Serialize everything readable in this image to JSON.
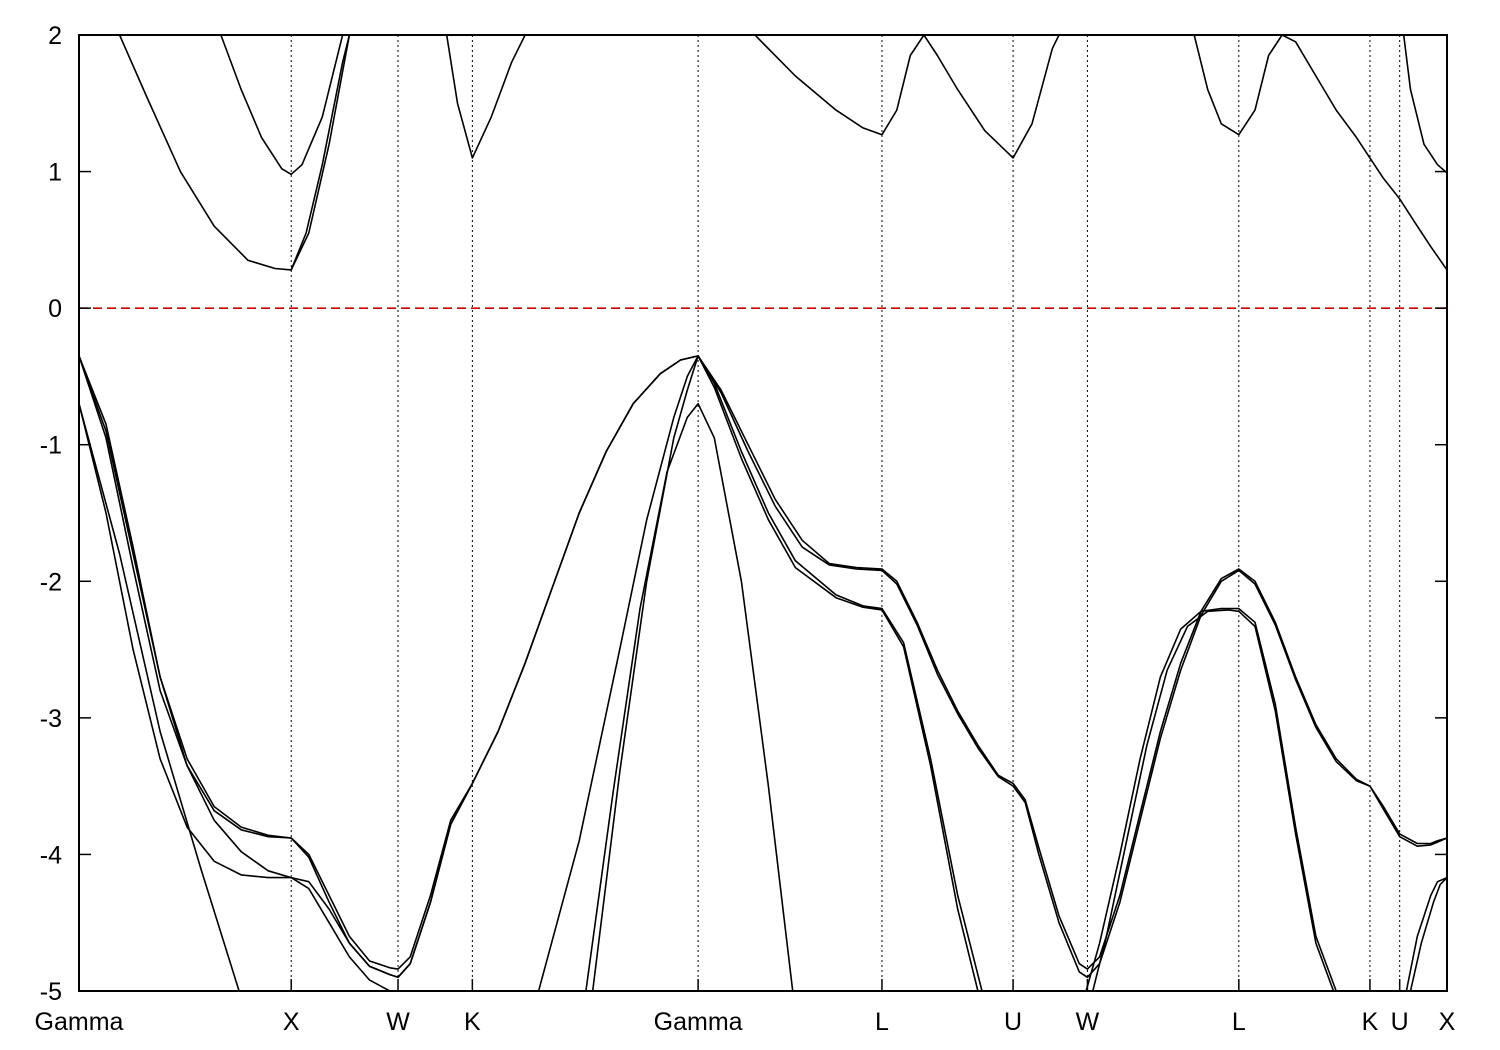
{
  "chart_data": {
    "type": "line",
    "title": "",
    "xlabel": "",
    "ylabel": "",
    "ylim": [
      -5,
      2
    ],
    "xlim": [
      0,
      10.12
    ],
    "yticks": [
      2,
      1,
      0,
      -1,
      -2,
      -3,
      -4,
      -5
    ],
    "ytick_labels": [
      "2",
      "1",
      "0",
      "-1",
      "-2",
      "-3",
      "-4",
      "-5"
    ],
    "k_points": [
      {
        "label": "Gamma",
        "x": 0.0
      },
      {
        "label": "X",
        "x": 1.57
      },
      {
        "label": "W",
        "x": 2.36
      },
      {
        "label": "K",
        "x": 2.91
      },
      {
        "label": "Gamma",
        "x": 4.58
      },
      {
        "label": "L",
        "x": 5.94
      },
      {
        "label": "U",
        "x": 6.91
      },
      {
        "label": "W",
        "x": 7.46
      },
      {
        "label": "L",
        "x": 8.58
      },
      {
        "label": "K",
        "x": 9.55
      },
      {
        "label": "U",
        "x": 9.77
      },
      {
        "label": "X",
        "x": 10.12
      }
    ],
    "fermi_level": 0,
    "fermi_color": "#d00000",
    "line_color": "#000000",
    "series": [
      {
        "x": [
          0,
          0.2,
          0.4,
          0.6,
          0.8,
          1.0,
          1.2,
          1.4,
          1.57,
          1.7,
          1.85,
          2.0,
          2.15,
          2.3,
          2.36,
          2.45,
          2.6,
          2.75,
          2.91,
          3.1,
          3.3,
          3.5,
          3.7,
          3.9,
          4.1,
          4.3,
          4.45,
          4.58,
          4.75,
          4.95,
          5.15,
          5.35,
          5.55,
          5.75,
          5.94,
          6.05,
          6.2,
          6.35,
          6.5,
          6.65,
          6.8,
          6.91,
          7.0,
          7.1,
          7.25,
          7.4,
          7.46,
          7.55,
          7.7,
          7.85,
          8.0,
          8.15,
          8.3,
          8.45,
          8.58,
          8.7,
          8.85,
          9.0,
          9.15,
          9.3,
          9.45,
          9.55,
          9.65,
          9.77,
          9.9,
          10.0,
          10.05,
          10.12
        ],
        "y": [
          -0.35,
          -0.9,
          -1.8,
          -2.7,
          -3.3,
          -3.65,
          -3.8,
          -3.86,
          -3.88,
          -4.0,
          -4.3,
          -4.6,
          -4.78,
          -4.83,
          -4.84,
          -4.75,
          -4.3,
          -3.75,
          -3.48,
          -3.1,
          -2.6,
          -2.05,
          -1.5,
          -1.05,
          -0.7,
          -0.48,
          -0.38,
          -0.35,
          -0.6,
          -1.0,
          -1.4,
          -1.7,
          -1.87,
          -1.9,
          -1.91,
          -2.0,
          -2.3,
          -2.65,
          -2.95,
          -3.2,
          -3.42,
          -3.48,
          -3.6,
          -3.95,
          -4.45,
          -4.8,
          -4.84,
          -4.75,
          -4.3,
          -3.7,
          -3.1,
          -2.6,
          -2.22,
          -1.98,
          -1.91,
          -2.0,
          -2.3,
          -2.7,
          -3.05,
          -3.3,
          -3.45,
          -3.5,
          -3.65,
          -3.85,
          -3.92,
          -3.92,
          -3.9,
          -3.88
        ]
      },
      {
        "x": [
          0,
          0.2,
          0.4,
          0.6,
          0.8,
          1.0,
          1.2,
          1.4,
          1.57,
          1.7,
          1.85,
          2.0,
          2.15,
          2.3,
          2.36,
          2.45,
          2.6,
          2.75,
          2.91,
          3.1,
          3.3,
          3.5,
          3.7,
          3.9,
          4.1,
          4.3,
          4.45,
          4.58,
          4.75,
          4.95,
          5.15,
          5.35,
          5.55,
          5.75,
          5.94,
          6.05,
          6.2,
          6.35,
          6.5,
          6.65,
          6.8,
          6.91,
          7.0,
          7.1,
          7.25,
          7.4,
          7.46,
          7.55,
          7.7,
          7.85,
          8.0,
          8.15,
          8.3,
          8.45,
          8.58,
          8.7,
          8.85,
          9.0,
          9.15,
          9.3,
          9.45,
          9.55,
          9.65,
          9.77,
          9.9,
          10.0,
          10.05,
          10.12
        ],
        "y": [
          -0.35,
          -0.95,
          -1.9,
          -2.8,
          -3.35,
          -3.68,
          -3.82,
          -3.87,
          -3.88,
          -4.02,
          -4.35,
          -4.65,
          -4.82,
          -4.88,
          -4.9,
          -4.8,
          -4.35,
          -3.78,
          -3.48,
          -3.1,
          -2.6,
          -2.05,
          -1.5,
          -1.05,
          -0.7,
          -0.48,
          -0.38,
          -0.35,
          -0.62,
          -1.05,
          -1.45,
          -1.75,
          -1.88,
          -1.91,
          -1.92,
          -2.02,
          -2.32,
          -2.68,
          -2.97,
          -3.22,
          -3.43,
          -3.5,
          -3.62,
          -4.0,
          -4.5,
          -4.86,
          -4.9,
          -4.8,
          -4.35,
          -3.75,
          -3.15,
          -2.65,
          -2.25,
          -2.0,
          -1.92,
          -2.02,
          -2.32,
          -2.72,
          -3.07,
          -3.32,
          -3.46,
          -3.5,
          -3.67,
          -3.87,
          -3.94,
          -3.93,
          -3.91,
          -3.88
        ]
      },
      {
        "x": [
          0,
          0.2,
          0.4,
          0.6,
          0.8,
          1.0,
          1.2,
          1.4,
          1.57,
          1.7,
          1.85,
          2.0,
          2.15,
          2.3,
          2.36,
          2.45,
          2.55,
          2.6
        ],
        "y": [
          -0.7,
          -1.5,
          -2.5,
          -3.3,
          -3.8,
          -4.05,
          -4.15,
          -4.17,
          -4.17,
          -4.25,
          -4.5,
          -4.75,
          -4.92,
          -5.0,
          -5.05,
          -5.1,
          -5.15,
          -5.2
        ]
      },
      {
        "x": [
          0,
          0.2,
          0.4,
          0.6,
          0.8,
          1.0,
          1.2,
          1.4,
          1.57,
          1.7,
          1.85,
          2.0,
          2.15,
          2.3,
          2.36,
          2.45,
          2.6,
          2.75,
          2.91
        ],
        "y": [
          -0.35,
          -0.85,
          -1.75,
          -2.7,
          -3.35,
          -3.75,
          -3.98,
          -4.12,
          -4.17,
          -4.2,
          -4.4,
          -4.65,
          -4.82,
          -4.88,
          -4.9,
          -4.8,
          -4.35,
          -3.78,
          -3.48
        ]
      },
      {
        "x": [
          0,
          0.3,
          0.6,
          0.9,
          1.2
        ],
        "y": [
          -0.7,
          -1.8,
          -3.1,
          -4.1,
          -5.05
        ]
      },
      {
        "x": [
          3.4,
          3.7,
          4.0,
          4.2,
          4.4,
          4.5,
          4.58,
          4.7,
          4.9,
          5.1,
          5.3,
          5.6,
          5.8,
          5.94,
          6.1,
          6.3,
          6.5,
          6.68
        ],
        "y": [
          -5.0,
          -3.9,
          -2.5,
          -1.55,
          -0.8,
          -0.5,
          -0.35,
          -0.55,
          -1.05,
          -1.5,
          -1.85,
          -2.1,
          -2.18,
          -2.2,
          -2.45,
          -3.3,
          -4.3,
          -5.0
        ]
      },
      {
        "x": [
          3.8,
          4.0,
          4.2,
          4.4,
          4.5,
          4.58,
          4.7,
          4.9,
          5.1,
          5.3,
          5.6,
          5.8,
          5.94,
          6.1,
          6.3,
          6.5,
          6.65
        ],
        "y": [
          -5.0,
          -3.4,
          -2.0,
          -0.95,
          -0.6,
          -0.35,
          -0.58,
          -1.1,
          -1.55,
          -1.9,
          -2.12,
          -2.19,
          -2.21,
          -2.48,
          -3.35,
          -4.4,
          -5.0
        ]
      },
      {
        "x": [
          3.75,
          3.95,
          4.15,
          4.35,
          4.5,
          4.58,
          4.7,
          4.9,
          5.1,
          5.28
        ],
        "y": [
          -5.0,
          -3.55,
          -2.2,
          -1.2,
          -0.8,
          -0.7,
          -0.95,
          -2.0,
          -3.5,
          -5.0
        ]
      },
      {
        "x": [
          7.45,
          7.55,
          7.7,
          7.85,
          8.0,
          8.15,
          8.3,
          8.45,
          8.58,
          8.7,
          8.85,
          9.0,
          9.15,
          9.3
        ],
        "y": [
          -5.0,
          -4.65,
          -4.0,
          -3.3,
          -2.7,
          -2.35,
          -2.22,
          -2.2,
          -2.2,
          -2.3,
          -2.9,
          -3.8,
          -4.6,
          -5.0
        ]
      },
      {
        "x": [
          7.5,
          7.6,
          7.75,
          7.9,
          8.05,
          8.2,
          8.35,
          8.5,
          8.58,
          8.7,
          8.85,
          9.0,
          9.15,
          9.28
        ],
        "y": [
          -5.0,
          -4.6,
          -3.9,
          -3.2,
          -2.65,
          -2.33,
          -2.22,
          -2.21,
          -2.22,
          -2.33,
          -2.95,
          -3.85,
          -4.65,
          -5.0
        ]
      },
      {
        "x": [
          9.82,
          9.9,
          10.0,
          10.05,
          10.12
        ],
        "y": [
          -5.0,
          -4.6,
          -4.3,
          -4.2,
          -4.17
        ]
      },
      {
        "x": [
          9.85,
          9.93,
          10.02,
          10.07,
          10.12
        ],
        "y": [
          -5.0,
          -4.65,
          -4.35,
          -4.22,
          -4.17
        ]
      },
      {
        "x": [
          0.3,
          0.5,
          0.75,
          1.0,
          1.25,
          1.45,
          1.57,
          1.7,
          1.85,
          2.0
        ],
        "y": [
          2.0,
          1.55,
          1.0,
          0.6,
          0.35,
          0.29,
          0.28,
          0.55,
          1.2,
          2.0
        ]
      },
      {
        "x": [
          1.57,
          1.68,
          1.8,
          1.95,
          2.0
        ],
        "y": [
          0.28,
          0.55,
          1.05,
          1.8,
          2.0
        ]
      },
      {
        "x": [
          1.05,
          1.2,
          1.35,
          1.5,
          1.57,
          1.65,
          1.8,
          1.95
        ],
        "y": [
          2.0,
          1.6,
          1.25,
          1.02,
          0.98,
          1.05,
          1.4,
          2.0
        ]
      },
      {
        "x": [
          2.72,
          2.8,
          2.91,
          3.05,
          3.2,
          3.3
        ],
        "y": [
          2.0,
          1.5,
          1.1,
          1.4,
          1.8,
          2.0
        ]
      },
      {
        "x": [
          5.0,
          5.3,
          5.6,
          5.8,
          5.94,
          6.05,
          6.15,
          6.25,
          6.35,
          6.5,
          6.7,
          6.91,
          7.05,
          7.2,
          7.25
        ],
        "y": [
          2.0,
          1.7,
          1.45,
          1.32,
          1.27,
          1.45,
          1.85,
          2.0,
          1.85,
          1.6,
          1.3,
          1.1,
          1.35,
          1.9,
          2.0
        ]
      },
      {
        "x": [
          8.25,
          8.35,
          8.45,
          8.58,
          8.7,
          8.8,
          8.9,
          9.0,
          9.15,
          9.3,
          9.45,
          9.55,
          9.65,
          9.77,
          9.9,
          10.0,
          10.12
        ],
        "y": [
          2.0,
          1.6,
          1.35,
          1.27,
          1.45,
          1.85,
          2.0,
          1.95,
          1.7,
          1.45,
          1.25,
          1.1,
          0.95,
          0.8,
          0.6,
          0.45,
          0.28
        ]
      },
      {
        "x": [
          9.8,
          9.85,
          9.95,
          10.05,
          10.12
        ],
        "y": [
          2.0,
          1.6,
          1.2,
          1.05,
          0.99
        ]
      }
    ]
  }
}
